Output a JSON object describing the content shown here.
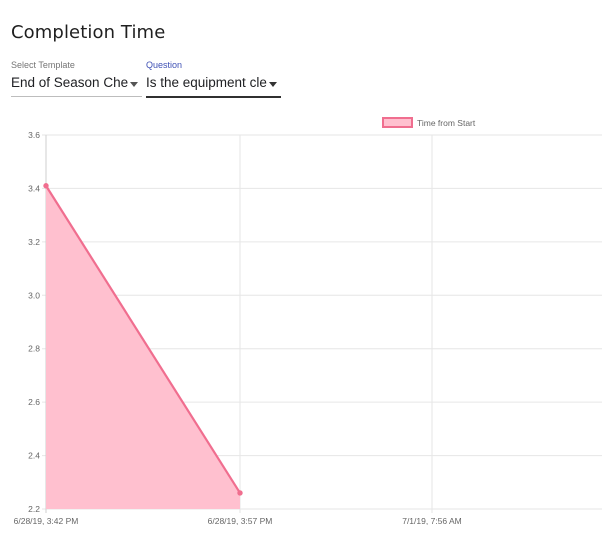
{
  "page": {
    "title": "Completion Time"
  },
  "filters": {
    "template": {
      "label": "Select Template",
      "value": "End of Season Che..."
    },
    "question": {
      "label": "Question",
      "value": "Is the equipment cle..."
    }
  },
  "chart_data": {
    "type": "area",
    "title": "",
    "xlabel": "",
    "ylabel": "",
    "x_ticks": [
      "6/28/19, 3:42 PM",
      "6/28/19, 3:57 PM",
      "7/1/19, 7:56 AM",
      "7/"
    ],
    "y_ticks": [
      "2.2",
      "2.4",
      "2.6",
      "2.8",
      "3.0",
      "3.2",
      "3.4",
      "3.6"
    ],
    "ylim": [
      2.2,
      3.6
    ],
    "grid": true,
    "legend_position": "top",
    "series": [
      {
        "name": "Time from Start",
        "color": "#f06e8f",
        "fill": "#ffc0cf",
        "points": [
          {
            "x": "6/28/19, 3:42 PM",
            "y": 3.41
          },
          {
            "x": "6/28/19, 3:57 PM",
            "y": 2.26
          }
        ]
      }
    ]
  }
}
